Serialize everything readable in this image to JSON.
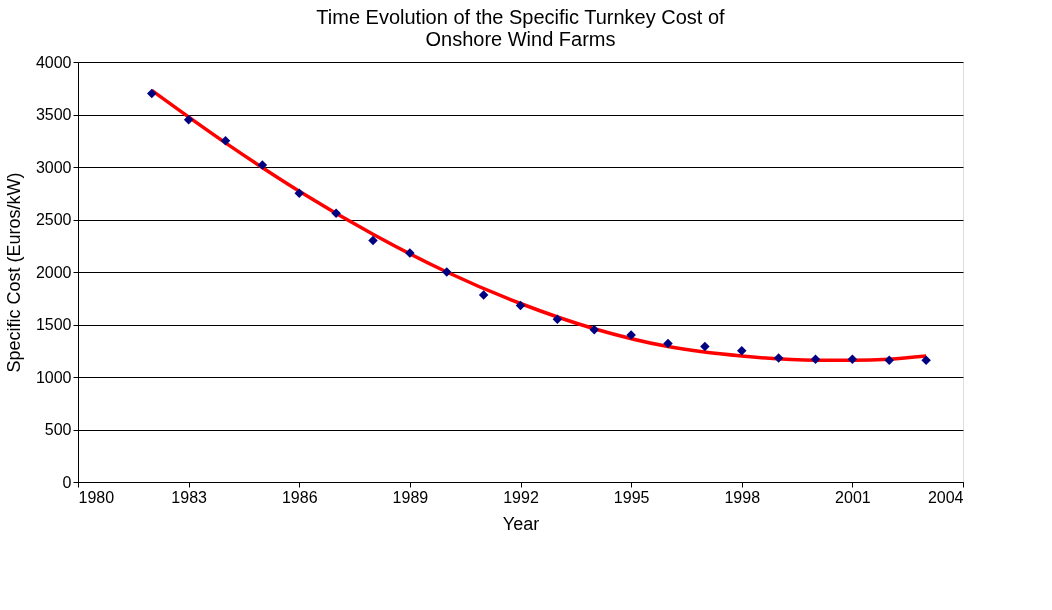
{
  "chart_data": {
    "type": "scatter",
    "title": [
      "Time Evolution of the Specific Turnkey Cost of",
      "Onshore Wind Farms"
    ],
    "xlabel": "Year",
    "ylabel": "Specific Cost (Euros/kW)",
    "x": [
      1982,
      1983,
      1984,
      1985,
      1986,
      1987,
      1988,
      1989,
      1990,
      1991,
      1992,
      1993,
      1994,
      1995,
      1996,
      1997,
      1998,
      1999,
      2000,
      2001,
      2002,
      2003
    ],
    "series": [
      {
        "color": "#000080",
        "marker": "diamond",
        "values": [
          3700,
          3450,
          3250,
          3020,
          2750,
          2560,
          2300,
          2180,
          2000,
          1780,
          1680,
          1550,
          1450,
          1400,
          1320,
          1290,
          1250,
          1180,
          1170,
          1170,
          1160,
          1160
        ]
      },
      {
        "type": "line",
        "color": "#ff0000",
        "marker": "none",
        "line_style": "solid",
        "x": [
          1982,
          1984,
          1986,
          1988,
          1990,
          1992,
          1994,
          1996,
          1998,
          2000,
          2001,
          2002,
          2003
        ],
        "values": [
          3730,
          3230,
          2770,
          2360,
          2000,
          1700,
          1460,
          1290,
          1200,
          1160,
          1160,
          1170,
          1200
        ]
      }
    ],
    "xlim": [
      1980,
      2004
    ],
    "xticks": [
      1980,
      1983,
      1986,
      1989,
      1992,
      1995,
      1998,
      2001,
      2004
    ],
    "ylim": [
      0,
      4000
    ],
    "yticks": [
      0,
      500,
      1000,
      1500,
      2000,
      2500,
      3000,
      3500,
      4000
    ],
    "grid": "y"
  }
}
